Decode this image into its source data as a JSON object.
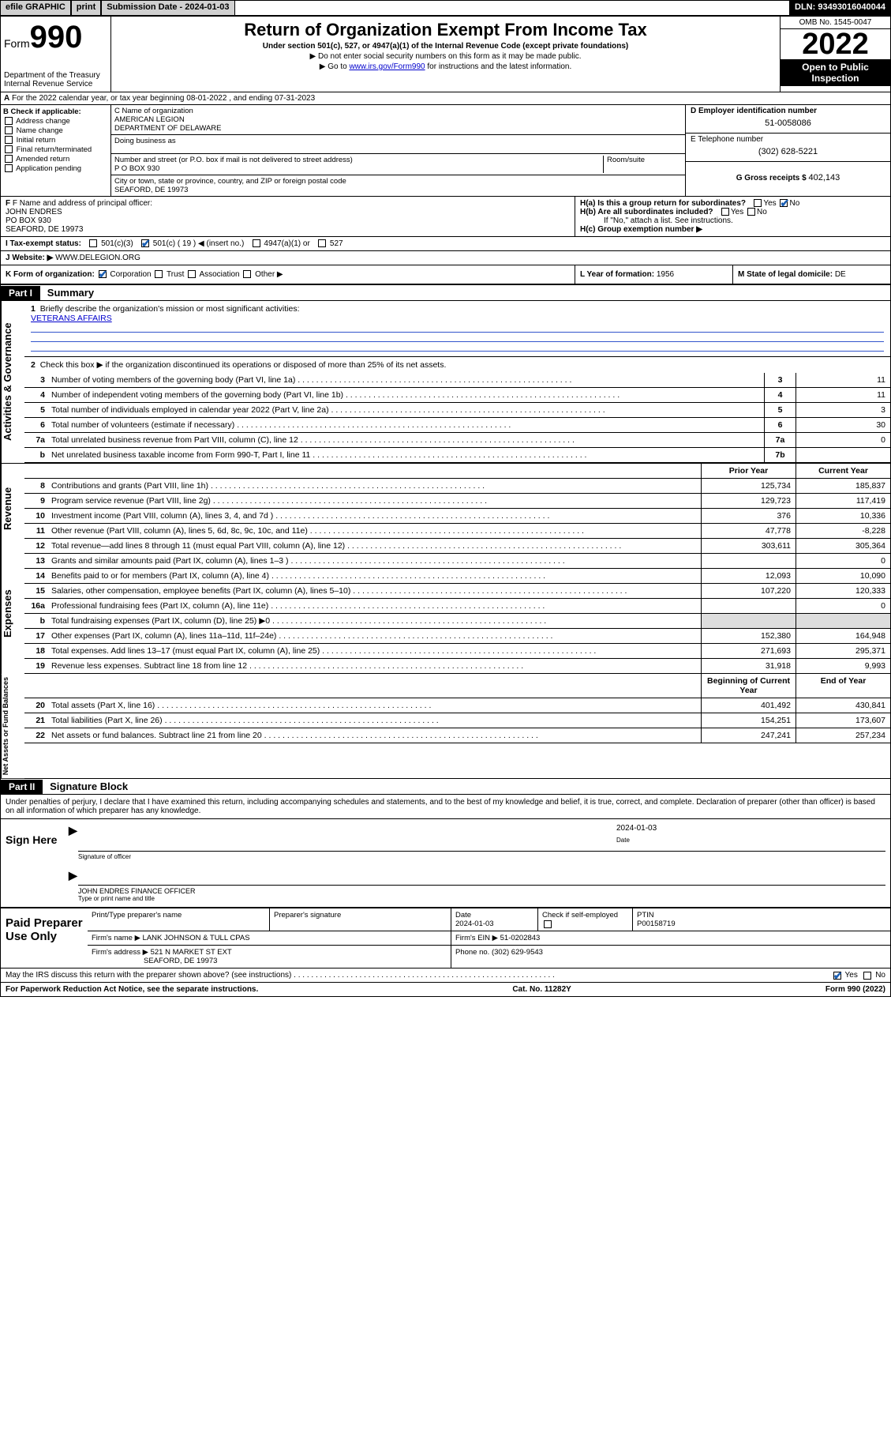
{
  "topbar": {
    "efile": "efile GRAPHIC",
    "print": "print",
    "submission": "Submission Date - 2024-01-03",
    "dln": "DLN: 93493016040044"
  },
  "header": {
    "form_word": "Form",
    "form_num": "990",
    "dept": "Department of the Treasury",
    "irs": "Internal Revenue Service",
    "title": "Return of Organization Exempt From Income Tax",
    "sub1": "Under section 501(c), 527, or 4947(a)(1) of the Internal Revenue Code (except private foundations)",
    "sub2": "▶ Do not enter social security numbers on this form as it may be made public.",
    "sub3_pre": "▶ Go to ",
    "sub3_link": "www.irs.gov/Form990",
    "sub3_post": " for instructions and the latest information.",
    "omb": "OMB No. 1545-0047",
    "year": "2022",
    "openpub1": "Open to Public",
    "openpub2": "Inspection"
  },
  "rowA": "For the 2022 calendar year, or tax year beginning 08-01-2022   , and ending 07-31-2023",
  "colB": {
    "head": "B Check if applicable:",
    "opts": [
      "Address change",
      "Name change",
      "Initial return",
      "Final return/terminated",
      "Amended return",
      "Application pending"
    ]
  },
  "colC": {
    "c_lab": "C Name of organization",
    "c_name1": "AMERICAN LEGION",
    "c_name2": "DEPARTMENT OF DELAWARE",
    "dba_lab": "Doing business as",
    "addr_lab": "Number and street (or P.O. box if mail is not delivered to street address)",
    "room_lab": "Room/suite",
    "addr": "P O BOX 930",
    "city_lab": "City or town, state or province, country, and ZIP or foreign postal code",
    "city": "SEAFORD, DE  19973"
  },
  "colE": {
    "d_lab": "D Employer identification number",
    "d_val": "51-0058086",
    "e_lab": "E Telephone number",
    "e_val": "(302) 628-5221",
    "g_lab": "G Gross receipts $",
    "g_val": "402,143"
  },
  "rowF": {
    "f_lab": "F Name and address of principal officer:",
    "f_name": "JOHN ENDRES",
    "f_addr1": "PO BOX 930",
    "f_addr2": "SEAFORD, DE  19973",
    "ha_lab": "H(a)  Is this a group return for subordinates?",
    "ha_yes": "Yes",
    "ha_no": "No",
    "hb_lab": "H(b)  Are all subordinates included?",
    "hb_yes": "Yes",
    "hb_no": "No",
    "hb_note": "If \"No,\" attach a list. See instructions.",
    "hc_lab": "H(c)  Group exemption number ▶"
  },
  "rowI": {
    "lab": "I   Tax-exempt status:",
    "o1": "501(c)(3)",
    "o2": "501(c) ( 19 ) ◀ (insert no.)",
    "o3": "4947(a)(1) or",
    "o4": "527"
  },
  "rowJ": {
    "lab": "J   Website: ▶",
    "val": "WWW.DELEGION.ORG"
  },
  "rowK": {
    "k_lab": "K Form of organization:",
    "k1": "Corporation",
    "k2": "Trust",
    "k3": "Association",
    "k4": "Other ▶",
    "l_lab": "L Year of formation:",
    "l_val": "1956",
    "m_lab": "M State of legal domicile:",
    "m_val": "DE"
  },
  "part1": {
    "bar": "Part I",
    "title": "Summary",
    "q1_lab": "Briefly describe the organization's mission or most significant activities:",
    "q1_ans": "VETERANS AFFAIRS",
    "q2": "Check this box ▶      if the organization discontinued its operations or disposed of more than 25% of its net assets.",
    "rows_num": [
      {
        "n": "3",
        "t": "Number of voting members of the governing body (Part VI, line 1a)",
        "c": "3",
        "v": "11"
      },
      {
        "n": "4",
        "t": "Number of independent voting members of the governing body (Part VI, line 1b)",
        "c": "4",
        "v": "11"
      },
      {
        "n": "5",
        "t": "Total number of individuals employed in calendar year 2022 (Part V, line 2a)",
        "c": "5",
        "v": "3"
      },
      {
        "n": "6",
        "t": "Total number of volunteers (estimate if necessary)",
        "c": "6",
        "v": "30"
      },
      {
        "n": "7a",
        "t": "Total unrelated business revenue from Part VIII, column (C), line 12",
        "c": "7a",
        "v": "0"
      },
      {
        "n": "b",
        "t": "Net unrelated business taxable income from Form 990-T, Part I, line 11",
        "c": "7b",
        "v": ""
      }
    ],
    "py": "Prior Year",
    "cy": "Current Year",
    "revenue": [
      {
        "n": "8",
        "t": "Contributions and grants (Part VIII, line 1h)",
        "p": "125,734",
        "c": "185,837"
      },
      {
        "n": "9",
        "t": "Program service revenue (Part VIII, line 2g)",
        "p": "129,723",
        "c": "117,419"
      },
      {
        "n": "10",
        "t": "Investment income (Part VIII, column (A), lines 3, 4, and 7d )",
        "p": "376",
        "c": "10,336"
      },
      {
        "n": "11",
        "t": "Other revenue (Part VIII, column (A), lines 5, 6d, 8c, 9c, 10c, and 11e)",
        "p": "47,778",
        "c": "-8,228"
      },
      {
        "n": "12",
        "t": "Total revenue—add lines 8 through 11 (must equal Part VIII, column (A), line 12)",
        "p": "303,611",
        "c": "305,364"
      }
    ],
    "expenses": [
      {
        "n": "13",
        "t": "Grants and similar amounts paid (Part IX, column (A), lines 1–3 )",
        "p": "",
        "c": "0"
      },
      {
        "n": "14",
        "t": "Benefits paid to or for members (Part IX, column (A), line 4)",
        "p": "12,093",
        "c": "10,090"
      },
      {
        "n": "15",
        "t": "Salaries, other compensation, employee benefits (Part IX, column (A), lines 5–10)",
        "p": "107,220",
        "c": "120,333"
      },
      {
        "n": "16a",
        "t": "Professional fundraising fees (Part IX, column (A), line 11e)",
        "p": "",
        "c": "0"
      },
      {
        "n": "b",
        "t": "Total fundraising expenses (Part IX, column (D), line 25) ▶0",
        "p": "__grey__",
        "c": "__grey__"
      },
      {
        "n": "17",
        "t": "Other expenses (Part IX, column (A), lines 11a–11d, 11f–24e)",
        "p": "152,380",
        "c": "164,948"
      },
      {
        "n": "18",
        "t": "Total expenses. Add lines 13–17 (must equal Part IX, column (A), line 25)",
        "p": "271,693",
        "c": "295,371"
      },
      {
        "n": "19",
        "t": "Revenue less expenses. Subtract line 18 from line 12",
        "p": "31,918",
        "c": "9,993"
      }
    ],
    "bcy": "Beginning of Current Year",
    "eoy": "End of Year",
    "netassets": [
      {
        "n": "20",
        "t": "Total assets (Part X, line 16)",
        "p": "401,492",
        "c": "430,841"
      },
      {
        "n": "21",
        "t": "Total liabilities (Part X, line 26)",
        "p": "154,251",
        "c": "173,607"
      },
      {
        "n": "22",
        "t": "Net assets or fund balances. Subtract line 21 from line 20",
        "p": "247,241",
        "c": "257,234"
      }
    ]
  },
  "part2": {
    "bar": "Part II",
    "title": "Signature Block",
    "penalty": "Under penalties of perjury, I declare that I have examined this return, including accompanying schedules and statements, and to the best of my knowledge and belief, it is true, correct, and complete. Declaration of preparer (other than officer) is based on all information of which preparer has any knowledge."
  },
  "sign": {
    "lab": "Sign Here",
    "sigcap": "Signature of officer",
    "date": "2024-01-03",
    "datecap": "Date",
    "name": "JOHN ENDRES  FINANCE OFFICER",
    "namecap": "Type or print name and title"
  },
  "prep": {
    "lab": "Paid Preparer Use Only",
    "h_name": "Print/Type preparer's name",
    "h_sig": "Preparer's signature",
    "h_date": "Date",
    "h_date_v": "2024-01-03",
    "h_check": "Check      if self-employed",
    "h_ptin": "PTIN",
    "h_ptin_v": "P00158719",
    "firm_lab": "Firm's name    ▶",
    "firm_v": "LANK JOHNSON & TULL CPAS",
    "ein_lab": "Firm's EIN ▶",
    "ein_v": "51-0202843",
    "addr_lab": "Firm's address ▶",
    "addr_v1": "521 N MARKET ST EXT",
    "addr_v2": "SEAFORD, DE  19973",
    "phone_lab": "Phone no.",
    "phone_v": "(302) 629-9543"
  },
  "foot": {
    "q": "May the IRS discuss this return with the preparer shown above? (see instructions)",
    "yes": "Yes",
    "no": "No",
    "pra": "For Paperwork Reduction Act Notice, see the separate instructions.",
    "cat": "Cat. No. 11282Y",
    "form": "Form 990 (2022)"
  },
  "vtabs": {
    "ag": "Activities & Governance",
    "rev": "Revenue",
    "exp": "Expenses",
    "na": "Net Assets or Fund Balances"
  }
}
